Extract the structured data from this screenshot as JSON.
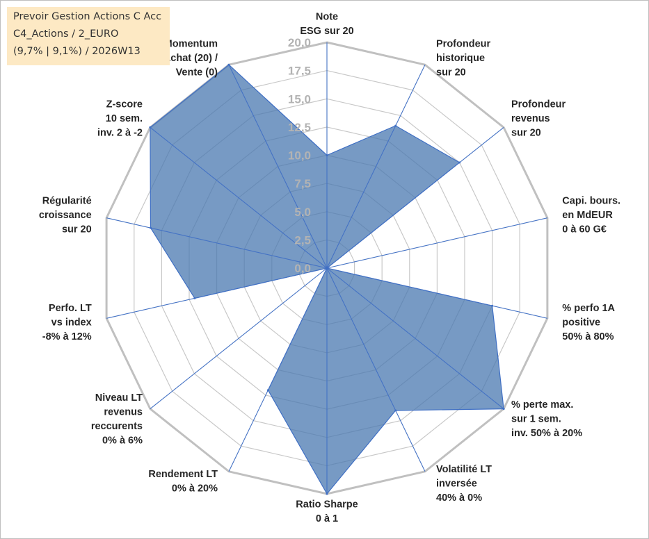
{
  "window": {
    "title_lines": [
      "Prevoir Gestion Actions C Acc",
      "C4_Actions / 2_EURO",
      "(9,7% | 9,1%) / 2026W13"
    ]
  },
  "chart_data": {
    "type": "radar",
    "title": "Prevoir Gestion Actions C Acc",
    "rmin": 0,
    "rmax": 20,
    "tick_values": [
      0,
      2.5,
      5,
      7.5,
      10,
      12.5,
      15,
      17.5,
      20
    ],
    "tick_labels": [
      "0,0",
      "2,5",
      "5,0",
      "7,5",
      "10,0",
      "12,5",
      "15,0",
      "17,5",
      "20,0"
    ],
    "grid": true,
    "axes": [
      {
        "label": [
          "Note",
          "ESG sur 20"
        ],
        "value": 10
      },
      {
        "label": [
          "Profondeur",
          "historique",
          "sur 20"
        ],
        "value": 14
      },
      {
        "label": [
          "Profondeur",
          "revenus",
          "sur 20"
        ],
        "value": 15
      },
      {
        "label": [
          "Capi. bours.",
          "en MdEUR",
          "0 à 60 G€"
        ],
        "value": 0
      },
      {
        "label": [
          "% perfo 1A",
          "positive",
          "50% à 80%"
        ],
        "value": 15
      },
      {
        "label": [
          "% perte max.",
          "sur 1 sem.",
          "inv. 50% à 20%"
        ],
        "value": 20
      },
      {
        "label": [
          "Volatilité LT",
          "inversée",
          "40% à 0%"
        ],
        "value": 14
      },
      {
        "label": [
          "Ratio Sharpe",
          "0 à 1"
        ],
        "value": 20
      },
      {
        "label": [
          "Rendement LT",
          "0% à 20%"
        ],
        "value": 12
      },
      {
        "label": [
          "Niveau LT",
          "revenus",
          "reccurents",
          "0% à 6%"
        ],
        "value": 0
      },
      {
        "label": [
          "Perfo. LT",
          "vs index",
          "-8% à 12%"
        ],
        "value": 12
      },
      {
        "label": [
          "Régularité",
          "croissance",
          "sur 20"
        ],
        "value": 16
      },
      {
        "label": [
          "Z-score",
          "10 sem.",
          "inv. 2 à -2"
        ],
        "value": 20
      },
      {
        "label": [
          "Momentum",
          "Achat (20) /",
          "Vente (0)"
        ],
        "value": 20
      }
    ],
    "series": [
      {
        "name": "Prevoir Gestion Actions C Acc",
        "values": [
          10,
          14,
          15,
          0,
          15,
          20,
          14,
          20,
          12,
          0,
          12,
          16,
          20,
          20
        ]
      }
    ],
    "colors": {
      "fill": "#4a78b0",
      "fill_opacity": "0.75",
      "stroke": "#3f6fc4",
      "grid": "#c8c8c8",
      "spoke": "#4472c4"
    }
  }
}
